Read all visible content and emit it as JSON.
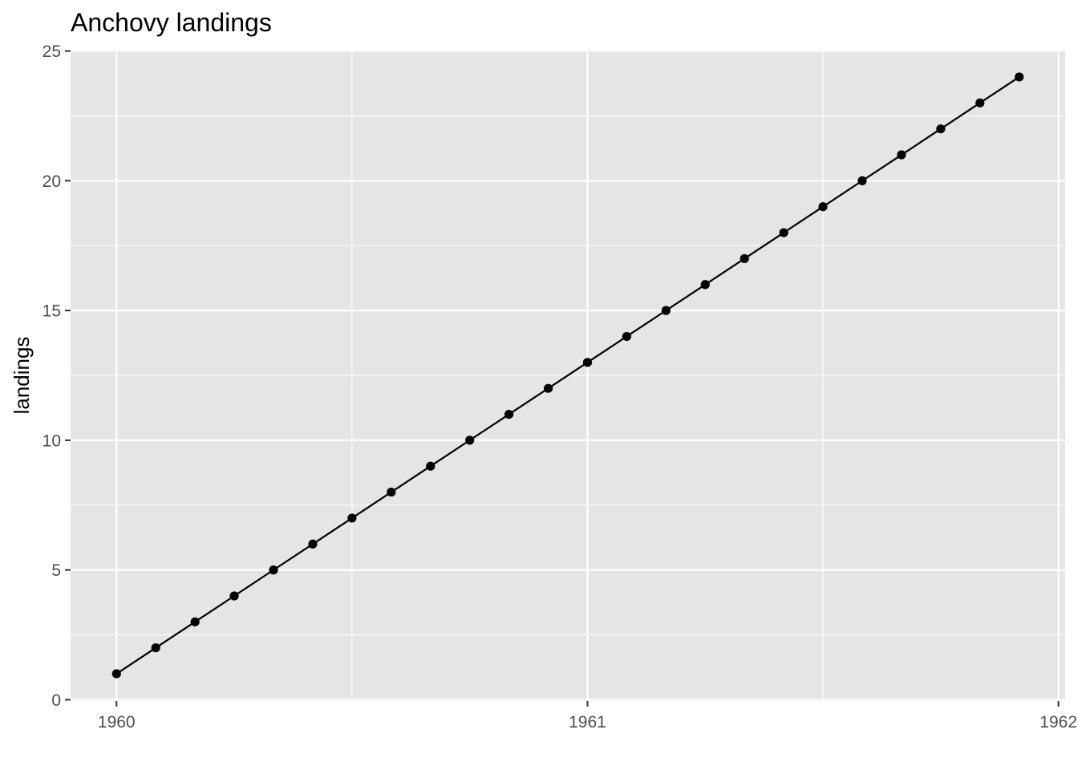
{
  "chart_data": {
    "type": "line",
    "title": "Anchovy landings",
    "xlabel": "",
    "ylabel": "landings",
    "x": [
      1960.0,
      1960.0833,
      1960.1667,
      1960.25,
      1960.3333,
      1960.4167,
      1960.5,
      1960.5833,
      1960.6667,
      1960.75,
      1960.8333,
      1960.9167,
      1961.0,
      1961.0833,
      1961.1667,
      1961.25,
      1961.3333,
      1961.4167,
      1961.5,
      1961.5833,
      1961.6667,
      1961.75,
      1961.8333,
      1961.9167
    ],
    "y": [
      1,
      2,
      3,
      4,
      5,
      6,
      7,
      8,
      9,
      10,
      11,
      12,
      13,
      14,
      15,
      16,
      17,
      18,
      19,
      20,
      21,
      22,
      23,
      24
    ],
    "xlim": [
      1959.9025,
      1962.0142
    ],
    "ylim": [
      -0.05,
      25.05
    ],
    "x_major_ticks": [
      1960,
      1961,
      1962
    ],
    "x_minor_ticks": [
      1960.5,
      1961.5
    ],
    "y_major_ticks": [
      0,
      5,
      10,
      15,
      20,
      25
    ],
    "y_minor_ticks": [
      2.5,
      7.5,
      12.5,
      17.5,
      22.5
    ],
    "x_tick_labels": [
      "1960",
      "1961",
      "1962"
    ],
    "y_tick_labels": [
      "0",
      "5",
      "10",
      "15",
      "20",
      "25"
    ],
    "grid": true,
    "legend": "none",
    "colors": {
      "panel_background": "#e5e5e5",
      "grid": "#ffffff",
      "line": "#000000",
      "point": "#000000",
      "tick": "#333333",
      "tick_label": "#4d4d4d"
    }
  }
}
